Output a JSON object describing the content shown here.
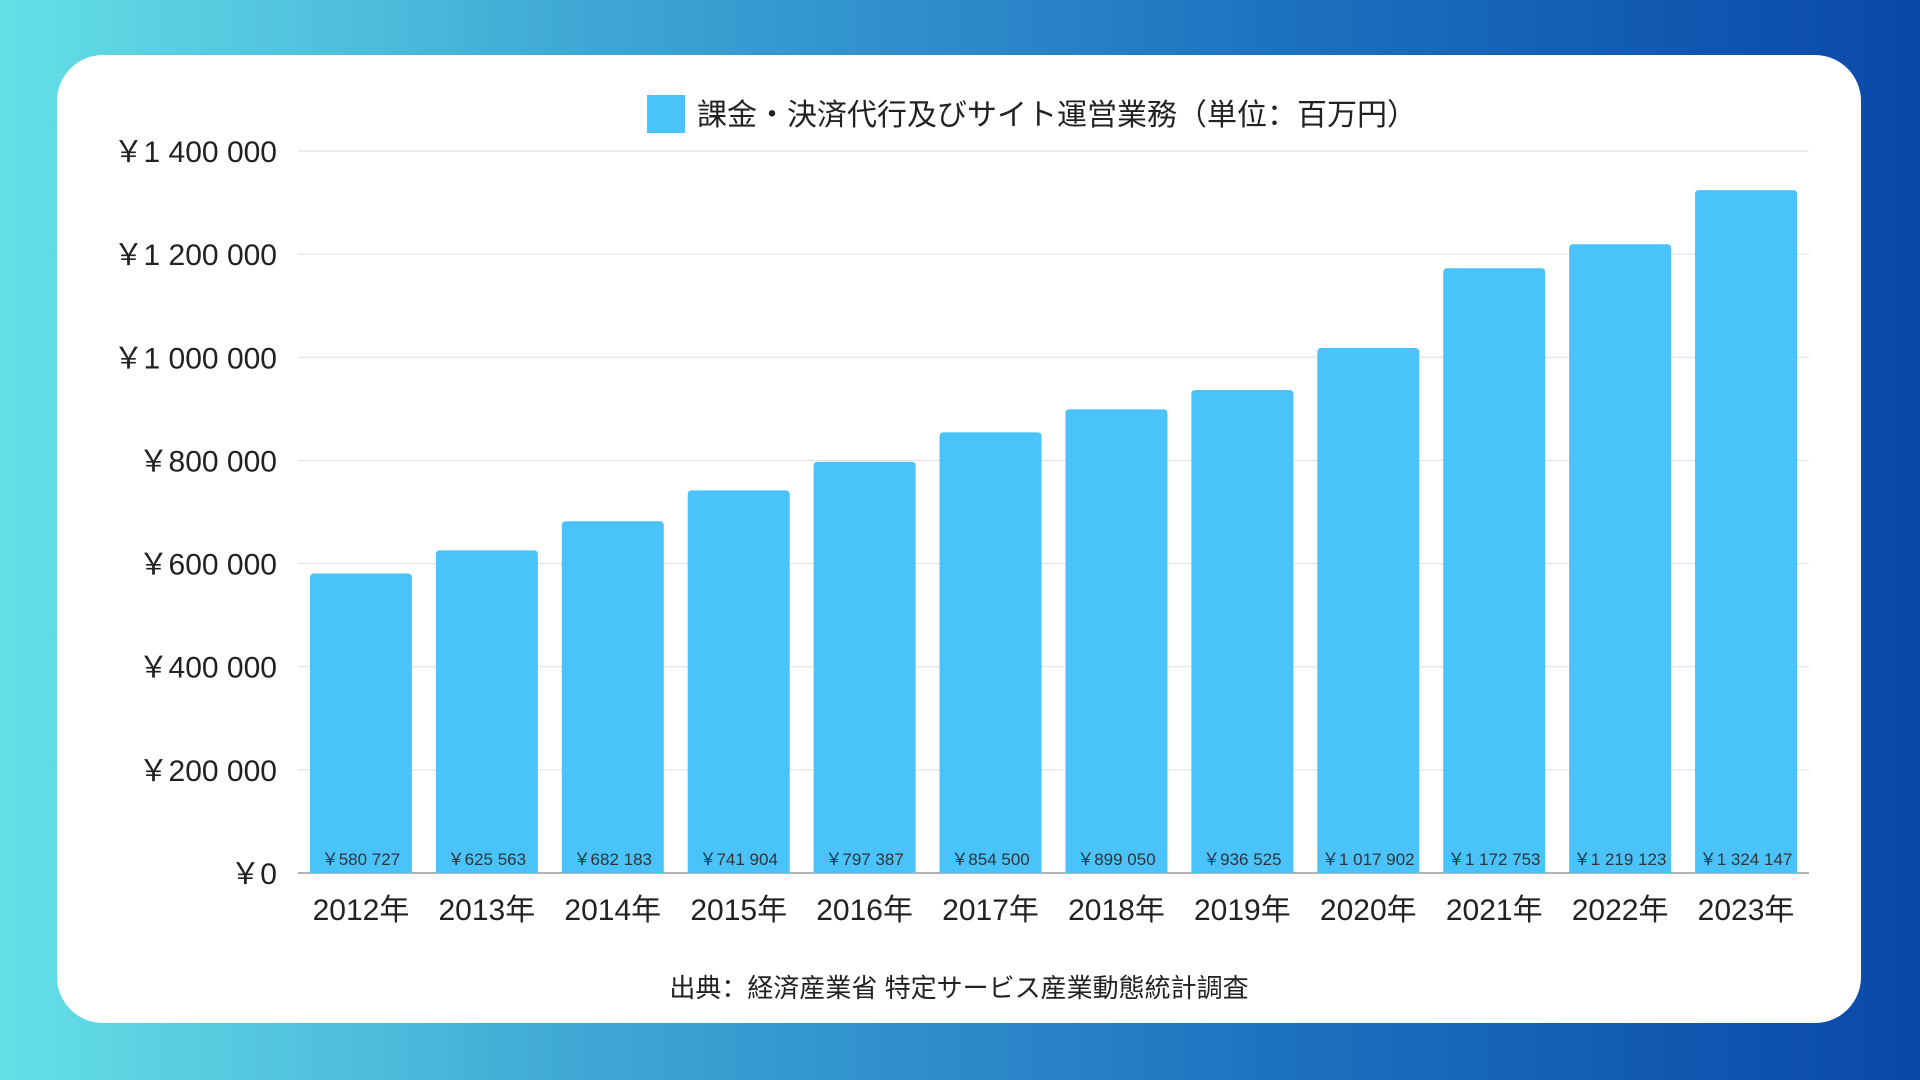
{
  "chart_data": {
    "type": "bar",
    "title": "",
    "legend": [
      "課金・決済代行及びサイト運営業務（単位：百万円）"
    ],
    "legend_position": "top",
    "categories": [
      "2012年",
      "2013年",
      "2014年",
      "2015年",
      "2016年",
      "2017年",
      "2018年",
      "2019年",
      "2020年",
      "2021年",
      "2022年",
      "2023年"
    ],
    "values": [
      580727,
      625563,
      682183,
      741904,
      797387,
      854500,
      899050,
      936525,
      1017902,
      1172753,
      1219123,
      1324147
    ],
    "data_labels": [
      "￥580 727",
      "￥625 563",
      "￥682 183",
      "￥741 904",
      "￥797 387",
      "￥854 500",
      "￥899 050",
      "￥936 525",
      "￥1 017 902",
      "￥1 172 753",
      "￥1 219 123",
      "￥1 324 147"
    ],
    "y_ticks": [
      0,
      200000,
      400000,
      600000,
      800000,
      1000000,
      1200000,
      1400000
    ],
    "y_tick_labels": [
      "￥0",
      "￥200 000",
      "￥400 000",
      "￥600 000",
      "￥800 000",
      "￥1 000 000",
      "￥1 200 000",
      "￥1 400 000"
    ],
    "ylim": [
      0,
      1400000
    ],
    "xlabel": "",
    "ylabel": "",
    "grid": true,
    "bar_color": "#4ac3fb",
    "source": "出典：経済産業省 特定サービス産業動態統計調査"
  }
}
